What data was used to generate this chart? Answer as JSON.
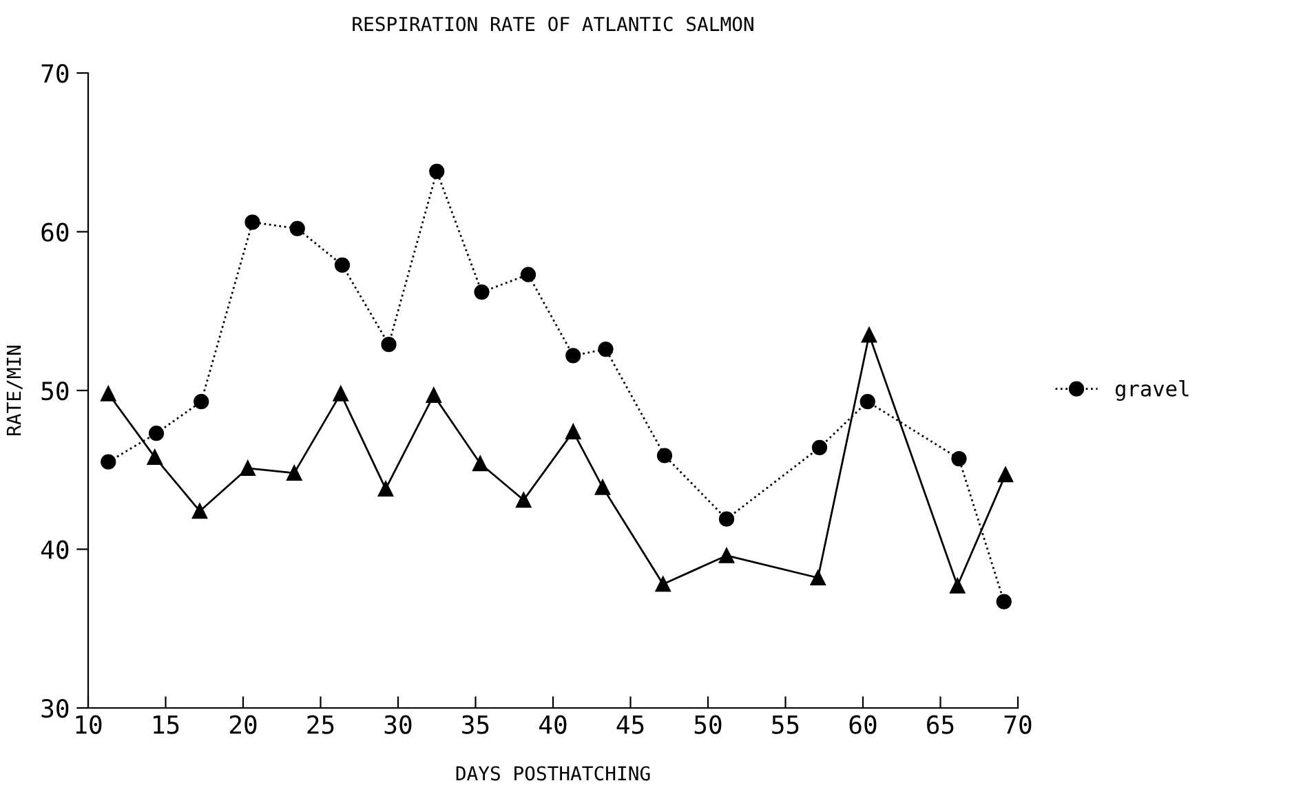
{
  "chart_data": {
    "type": "line",
    "title": "RESPIRATION RATE OF ATLANTIC SALMON",
    "xlabel": "DAYS POSTHATCHING",
    "ylabel": "RATE/MIN",
    "xlim": [
      10,
      70
    ],
    "xticks": [
      10,
      15,
      20,
      25,
      30,
      35,
      40,
      45,
      50,
      55,
      60,
      65,
      70
    ],
    "ylim": [
      30,
      70
    ],
    "yticks": [
      30,
      40,
      50,
      60,
      70
    ],
    "grid": false,
    "legend": "right",
    "series": [
      {
        "color": "#000000",
        "marker": "triangle",
        "line_style": "solid",
        "x": [
          11.3,
          14.3,
          17.2,
          20.3,
          23.3,
          26.3,
          29.2,
          32.3,
          35.3,
          38.1,
          41.3,
          43.2,
          47.1,
          51.2,
          57.1,
          60.4,
          66.1,
          69.2
        ],
        "values": [
          49.8,
          45.8,
          42.4,
          45.1,
          44.8,
          49.8,
          43.8,
          49.7,
          45.4,
          43.1,
          47.4,
          43.9,
          37.8,
          39.6,
          38.2,
          53.5,
          37.7,
          44.7
        ]
      },
      {
        "name": "gravel",
        "color": "#000000",
        "marker": "circle",
        "line_style": "dotted",
        "x": [
          11.3,
          14.4,
          17.3,
          20.6,
          23.5,
          26.4,
          29.4,
          32.5,
          35.4,
          38.4,
          41.3,
          43.4,
          47.2,
          51.2,
          57.2,
          60.3,
          66.2,
          69.1
        ],
        "values": [
          45.5,
          47.3,
          49.3,
          60.6,
          60.2,
          57.9,
          52.9,
          63.8,
          56.2,
          57.3,
          52.2,
          52.6,
          45.9,
          41.9,
          46.4,
          49.3,
          45.7,
          36.7
        ]
      }
    ]
  }
}
